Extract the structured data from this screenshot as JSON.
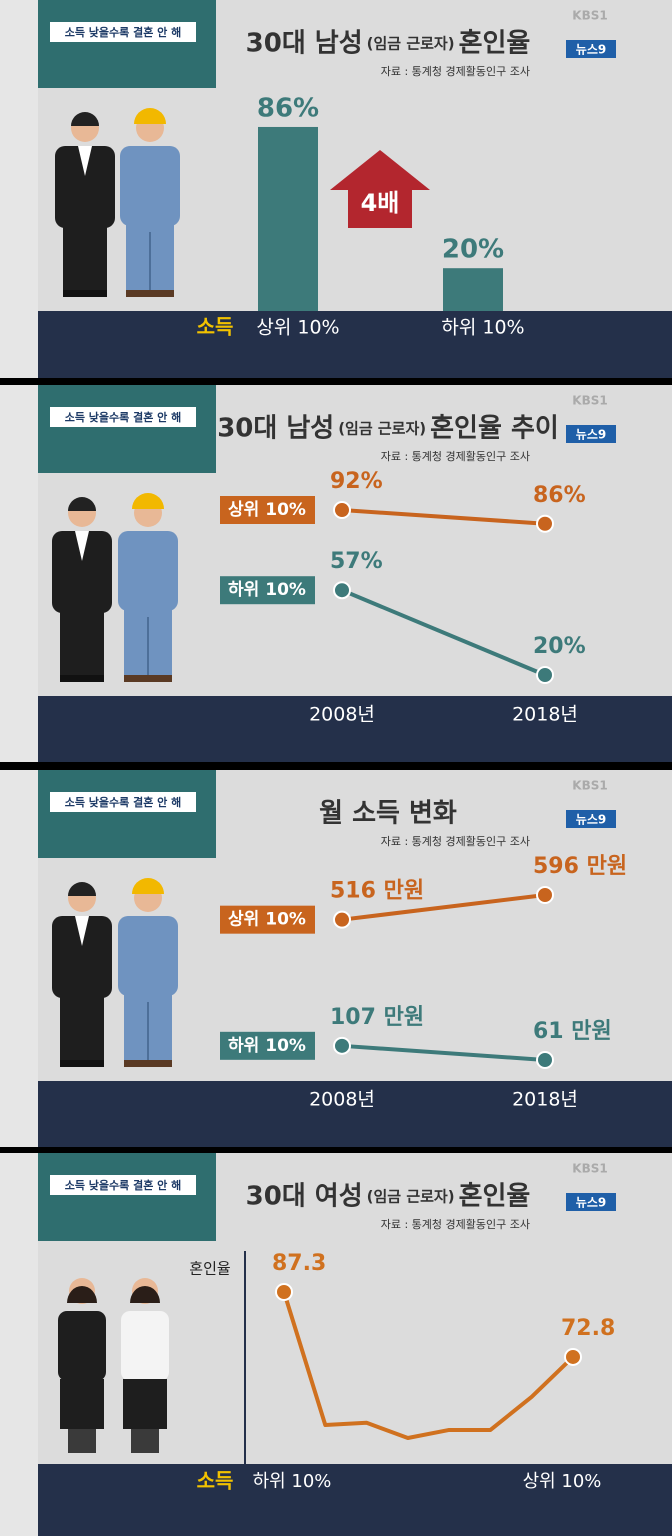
{
  "chart_data": [
    {
      "type": "bar",
      "tag": "소득 낮을수록 결혼 안 해",
      "title": "30대 남성",
      "title_paren": "(임금 근로자)",
      "title_end": "혼인율",
      "source": "자료 : 통계청 경제활동인구 조사",
      "logo_top": "KBS1",
      "logo_box": "뉴스9",
      "xlabel": "소득",
      "categories": [
        "상위 10%",
        "하위 10%"
      ],
      "values": [
        86,
        20
      ],
      "value_labels": [
        "86%",
        "20%"
      ],
      "color": "#3d7a7a",
      "annotation": "4배"
    },
    {
      "type": "line",
      "tag": "소득 낮을수록 결혼 안 해",
      "title": "30대 남성",
      "title_paren": "(임금 근로자)",
      "title_end": "혼인율 추이",
      "source": "자료 : 통계청 경제활동인구 조사",
      "logo_top": "KBS1",
      "logo_box": "뉴스9",
      "categories": [
        "2008년",
        "2018년"
      ],
      "series": [
        {
          "name": "상위 10%",
          "color": "#c8641e",
          "values": [
            92,
            86
          ],
          "value_labels": [
            "92%",
            "86%"
          ]
        },
        {
          "name": "하위 10%",
          "color": "#3d7a7a",
          "values": [
            57,
            20
          ],
          "value_labels": [
            "57%",
            "20%"
          ]
        }
      ]
    },
    {
      "type": "line",
      "tag": "소득 낮을수록 결혼 안 해",
      "title": "월 소득 변화",
      "source": "자료 : 통계청 경제활동인구 조사",
      "logo_top": "KBS1",
      "logo_box": "뉴스9",
      "categories": [
        "2008년",
        "2018년"
      ],
      "series": [
        {
          "name": "상위 10%",
          "color": "#c8641e",
          "values": [
            516,
            596
          ],
          "value_labels": [
            "516 만원",
            "596 만원"
          ]
        },
        {
          "name": "하위 10%",
          "color": "#3d7a7a",
          "values": [
            107,
            61
          ],
          "value_labels": [
            "107 만원",
            "61 만원"
          ]
        }
      ]
    },
    {
      "type": "line",
      "tag": "소득 낮을수록 결혼 안 해",
      "title": "30대 여성",
      "title_paren": "(임금 근로자)",
      "title_end": "혼인율",
      "source": "자료 : 통계청 경제활동인구 조사",
      "logo_top": "KBS1",
      "logo_box": "뉴스9",
      "ylabel": "혼인율",
      "xlabel": "소득",
      "x_end_labels": [
        "하위 10%",
        "상위 10%"
      ],
      "categories": [
        null,
        null,
        null,
        null,
        null,
        null,
        null,
        null
      ],
      "series": [
        {
          "color": "#d0711f",
          "values": [
            87.3,
            57.6,
            58.1,
            54.7,
            56.5,
            56.5,
            63.9,
            72.8
          ]
        }
      ]
    }
  ]
}
